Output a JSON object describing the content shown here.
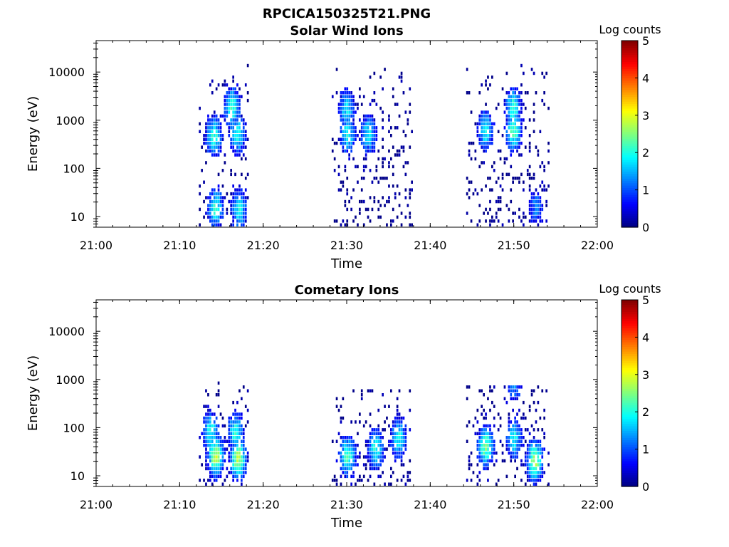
{
  "figure": {
    "title": "RPCICA150325T21.PNG"
  },
  "colors": {
    "colormap": [
      "#00007f",
      "#0000ff",
      "#007fff",
      "#00ffff",
      "#7fff7f",
      "#ffff00",
      "#ff7f00",
      "#ff0000",
      "#7f0000"
    ],
    "axes": "#000000",
    "background": "#ffffff"
  },
  "chart_data": [
    {
      "type": "heatmap",
      "title": "Solar Wind Ions",
      "xlabel": "Time",
      "ylabel": "Energy (eV)",
      "x_ticks": [
        "21:00",
        "21:10",
        "21:20",
        "21:30",
        "21:40",
        "21:50",
        "22:00"
      ],
      "x_range_minutes": [
        0,
        60
      ],
      "y_scale": "log",
      "y_ticks": [
        "10",
        "100",
        "1000",
        "10000"
      ],
      "y_range": [
        6,
        45000
      ],
      "colorbar": {
        "label": "Log counts",
        "range": [
          0,
          5
        ],
        "ticks": [
          "0",
          "1",
          "2",
          "3",
          "4",
          "5"
        ]
      },
      "intervals": [
        {
          "start_min": 12.3,
          "end_min": 18.2,
          "e_min": 6,
          "e_max": 14000,
          "peak": 2.2
        },
        {
          "start_min": 28.2,
          "end_min": 37.8,
          "e_min": 6,
          "e_max": 13000,
          "peak": 2.2
        },
        {
          "start_min": 44.3,
          "end_min": 54.2,
          "e_min": 6,
          "e_max": 14000,
          "peak": 2.3
        }
      ],
      "bursts": [
        {
          "t_min": 14.0,
          "e_center": 450,
          "level": 2.1
        },
        {
          "t_min": 16.8,
          "e_center": 500,
          "level": 2.0
        },
        {
          "t_min": 16.2,
          "e_center": 1800,
          "level": 2.2
        },
        {
          "t_min": 14.2,
          "e_center": 15,
          "level": 2.0
        },
        {
          "t_min": 17.0,
          "e_center": 14,
          "level": 1.9
        },
        {
          "t_min": 30.0,
          "e_center": 500,
          "level": 1.9
        },
        {
          "t_min": 32.5,
          "e_center": 520,
          "level": 1.8
        },
        {
          "t_min": 29.9,
          "e_center": 1700,
          "level": 1.8
        },
        {
          "t_min": 46.5,
          "e_center": 600,
          "level": 1.9
        },
        {
          "t_min": 49.9,
          "e_center": 600,
          "level": 2.3
        },
        {
          "t_min": 49.8,
          "e_center": 1800,
          "level": 2.1
        },
        {
          "t_min": 52.5,
          "e_center": 15,
          "level": 1.2
        }
      ]
    },
    {
      "type": "heatmap",
      "title": "Cometary Ions",
      "xlabel": "Time",
      "ylabel": "Energy (eV)",
      "x_ticks": [
        "21:00",
        "21:10",
        "21:20",
        "21:30",
        "21:40",
        "21:50",
        "22:00"
      ],
      "x_range_minutes": [
        0,
        60
      ],
      "y_scale": "log",
      "y_ticks": [
        "10",
        "100",
        "1000",
        "10000"
      ],
      "y_range": [
        6,
        45000
      ],
      "colorbar": {
        "label": "Log counts",
        "range": [
          0,
          5
        ],
        "ticks": [
          "0",
          "1",
          "2",
          "3",
          "4",
          "5"
        ]
      },
      "intervals": [
        {
          "start_min": 12.3,
          "end_min": 18.2,
          "e_min": 6,
          "e_max": 900,
          "peak": 2.8
        },
        {
          "start_min": 28.2,
          "end_min": 37.6,
          "e_min": 6,
          "e_max": 600,
          "peak": 2.3
        },
        {
          "start_min": 44.3,
          "end_min": 54.2,
          "e_min": 6,
          "e_max": 700,
          "peak": 2.7
        }
      ],
      "bursts": [
        {
          "t_min": 14.2,
          "e_center": 25,
          "level": 2.8
        },
        {
          "t_min": 16.9,
          "e_center": 22,
          "level": 2.8
        },
        {
          "t_min": 13.6,
          "e_center": 80,
          "level": 2.0
        },
        {
          "t_min": 16.6,
          "e_center": 80,
          "level": 2.0
        },
        {
          "t_min": 30.0,
          "e_center": 25,
          "level": 2.3
        },
        {
          "t_min": 33.4,
          "e_center": 35,
          "level": 2.0
        },
        {
          "t_min": 36.1,
          "e_center": 60,
          "level": 2.0
        },
        {
          "t_min": 46.5,
          "e_center": 40,
          "level": 2.4
        },
        {
          "t_min": 52.4,
          "e_center": 20,
          "level": 2.7
        },
        {
          "t_min": 49.9,
          "e_center": 60,
          "level": 1.9
        },
        {
          "t_min": 50.0,
          "e_center": 750,
          "level": 1.2
        }
      ]
    }
  ]
}
